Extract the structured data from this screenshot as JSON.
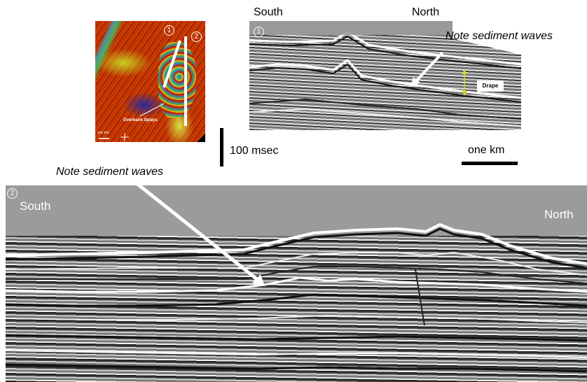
{
  "map": {
    "marker_1": "1",
    "marker_2": "2",
    "overbank_label": "Overbank Splays",
    "scale_label": "one km"
  },
  "section1": {
    "marker": "1",
    "south_label": "South",
    "north_label": "North",
    "note": "Note sediment waves",
    "drape_label": "Drape"
  },
  "scale": {
    "time_label": "100 msec",
    "distance_label": "one km"
  },
  "section2": {
    "marker": "2",
    "south_label": "South",
    "north_label": "North",
    "note": "Note sediment waves"
  },
  "colors": {
    "map_base": "#c02800",
    "arrow": "#ffffff",
    "drape_arrow": "#d8d820"
  }
}
